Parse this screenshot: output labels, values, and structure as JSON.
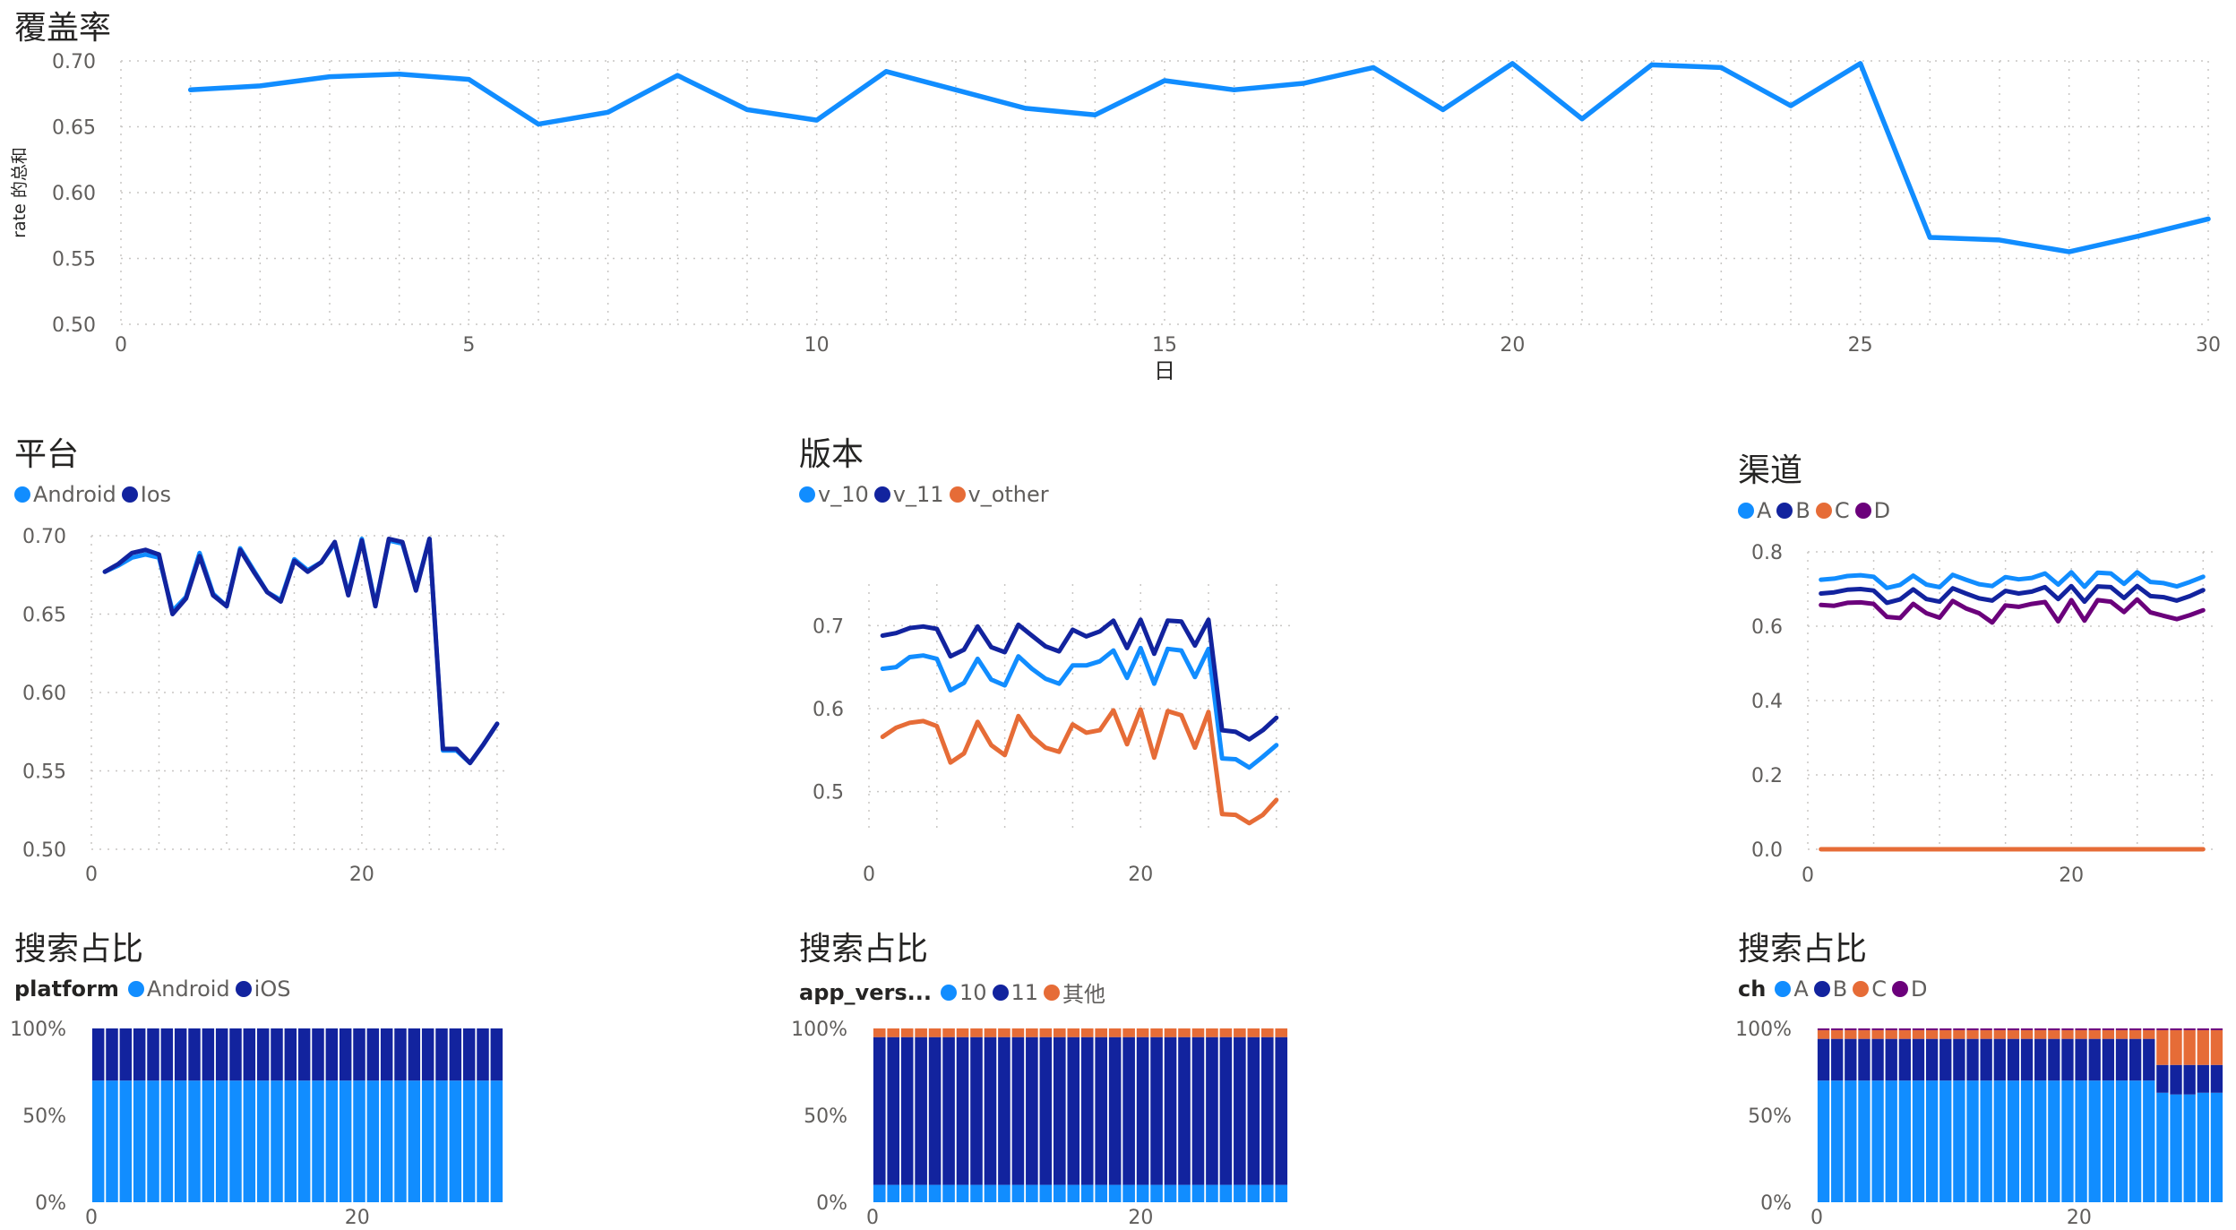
{
  "colors": {
    "light_blue": "#118DFF",
    "dark_blue": "#12239E",
    "orange": "#E66C37",
    "purple": "#6B007B",
    "grid": "#c8c6c4",
    "axis_text": "#605e5c"
  },
  "chart_data": [
    {
      "id": "coverage",
      "type": "line",
      "title": "覆盖率",
      "xlabel": "日",
      "ylabel": "rate 的总和",
      "xlim": [
        0,
        30
      ],
      "ylim": [
        0.5,
        0.7
      ],
      "xticks": [
        0,
        5,
        10,
        15,
        20,
        25,
        30
      ],
      "yticks": [
        0.5,
        0.55,
        0.6,
        0.65,
        0.7
      ],
      "ytick_labels": [
        "0.50",
        "0.55",
        "0.60",
        "0.65",
        "0.70"
      ],
      "grid": true,
      "x": [
        1,
        2,
        3,
        4,
        5,
        6,
        7,
        8,
        9,
        10,
        11,
        12,
        13,
        14,
        15,
        16,
        17,
        18,
        19,
        20,
        21,
        22,
        23,
        24,
        25,
        26,
        27,
        28,
        29,
        30
      ],
      "series": [
        {
          "color": "#118DFF",
          "values": [
            0.678,
            0.681,
            0.688,
            0.69,
            0.686,
            0.652,
            0.661,
            0.689,
            0.663,
            0.655,
            0.692,
            0.678,
            0.664,
            0.659,
            0.685,
            0.678,
            0.683,
            0.695,
            0.663,
            0.698,
            0.656,
            0.697,
            0.695,
            0.666,
            0.698,
            0.566,
            0.564,
            0.555,
            0.567,
            0.58
          ]
        }
      ]
    },
    {
      "id": "platform",
      "type": "line",
      "title": "平台",
      "xlim": [
        0,
        31
      ],
      "ylim": [
        0.5,
        0.7
      ],
      "xticks": [
        0,
        20
      ],
      "yticks": [
        0.5,
        0.55,
        0.6,
        0.65,
        0.7
      ],
      "ytick_labels": [
        "0.50",
        "0.55",
        "0.60",
        "0.65",
        "0.70"
      ],
      "grid": true,
      "legend_position": "top-left",
      "x": [
        1,
        2,
        3,
        4,
        5,
        6,
        7,
        8,
        9,
        10,
        11,
        12,
        13,
        14,
        15,
        16,
        17,
        18,
        19,
        20,
        21,
        22,
        23,
        24,
        25,
        26,
        27,
        28,
        29,
        30
      ],
      "series": [
        {
          "name": "Android",
          "color": "#118DFF",
          "values": [
            0.677,
            0.681,
            0.686,
            0.688,
            0.686,
            0.652,
            0.661,
            0.689,
            0.663,
            0.655,
            0.692,
            0.678,
            0.664,
            0.659,
            0.685,
            0.678,
            0.683,
            0.695,
            0.663,
            0.698,
            0.656,
            0.697,
            0.695,
            0.666,
            0.698,
            0.563,
            0.563,
            0.555,
            0.567,
            0.58
          ]
        },
        {
          "name": "Ios",
          "color": "#12239E",
          "values": [
            0.677,
            0.682,
            0.689,
            0.691,
            0.688,
            0.65,
            0.66,
            0.687,
            0.662,
            0.655,
            0.691,
            0.677,
            0.664,
            0.658,
            0.684,
            0.677,
            0.683,
            0.696,
            0.662,
            0.697,
            0.655,
            0.698,
            0.696,
            0.665,
            0.698,
            0.564,
            0.564,
            0.555,
            0.567,
            0.58
          ]
        }
      ]
    },
    {
      "id": "version",
      "type": "line",
      "title": "版本",
      "xlim": [
        0,
        31
      ],
      "ylim": [
        0.45,
        0.75
      ],
      "xticks": [
        0,
        20
      ],
      "yticks": [
        0.5,
        0.6,
        0.7
      ],
      "ytick_labels": [
        "0.5",
        "0.6",
        "0.7"
      ],
      "grid": true,
      "legend_position": "top-left",
      "x": [
        1,
        2,
        3,
        4,
        5,
        6,
        7,
        8,
        9,
        10,
        11,
        12,
        13,
        14,
        15,
        16,
        17,
        18,
        19,
        20,
        21,
        22,
        23,
        24,
        25,
        26,
        27,
        28,
        29,
        30
      ],
      "series": [
        {
          "name": "v_10",
          "color": "#118DFF",
          "values": [
            0.648,
            0.65,
            0.662,
            0.664,
            0.66,
            0.622,
            0.631,
            0.66,
            0.635,
            0.628,
            0.663,
            0.648,
            0.636,
            0.63,
            0.652,
            0.652,
            0.657,
            0.67,
            0.637,
            0.673,
            0.63,
            0.672,
            0.67,
            0.638,
            0.672,
            0.54,
            0.539,
            0.529,
            0.542,
            0.556
          ]
        },
        {
          "name": "v_11",
          "color": "#12239E",
          "values": [
            0.688,
            0.691,
            0.697,
            0.699,
            0.696,
            0.663,
            0.671,
            0.699,
            0.674,
            0.668,
            0.701,
            0.688,
            0.675,
            0.669,
            0.695,
            0.687,
            0.693,
            0.706,
            0.673,
            0.707,
            0.666,
            0.706,
            0.705,
            0.676,
            0.707,
            0.574,
            0.572,
            0.563,
            0.574,
            0.589
          ]
        },
        {
          "name": "v_other",
          "color": "#E66C37",
          "values": [
            0.566,
            0.577,
            0.583,
            0.585,
            0.579,
            0.535,
            0.546,
            0.584,
            0.556,
            0.544,
            0.591,
            0.567,
            0.553,
            0.548,
            0.581,
            0.571,
            0.574,
            0.598,
            0.557,
            0.599,
            0.541,
            0.597,
            0.592,
            0.553,
            0.596,
            0.473,
            0.472,
            0.462,
            0.472,
            0.49
          ]
        }
      ]
    },
    {
      "id": "channel",
      "type": "line",
      "title": "渠道",
      "xlim": [
        0,
        31
      ],
      "ylim": [
        0,
        0.8
      ],
      "xticks": [
        0,
        20
      ],
      "yticks": [
        0,
        0.2,
        0.4,
        0.6,
        0.8
      ],
      "ytick_labels": [
        "0.0",
        "0.2",
        "0.4",
        "0.6",
        "0.8"
      ],
      "grid": true,
      "legend_position": "top-left",
      "x": [
        1,
        2,
        3,
        4,
        5,
        6,
        7,
        8,
        9,
        10,
        11,
        12,
        13,
        14,
        15,
        16,
        17,
        18,
        19,
        20,
        21,
        22,
        23,
        24,
        25,
        26,
        27,
        28,
        29,
        30
      ],
      "series": [
        {
          "name": "A",
          "color": "#118DFF",
          "values": [
            0.725,
            0.728,
            0.735,
            0.737,
            0.733,
            0.703,
            0.711,
            0.736,
            0.712,
            0.705,
            0.738,
            0.725,
            0.713,
            0.708,
            0.732,
            0.726,
            0.73,
            0.742,
            0.712,
            0.745,
            0.706,
            0.744,
            0.742,
            0.714,
            0.745,
            0.719,
            0.716,
            0.707,
            0.719,
            0.733
          ]
        },
        {
          "name": "B",
          "color": "#12239E",
          "values": [
            0.688,
            0.691,
            0.698,
            0.7,
            0.696,
            0.663,
            0.672,
            0.699,
            0.673,
            0.666,
            0.702,
            0.688,
            0.675,
            0.669,
            0.695,
            0.688,
            0.693,
            0.705,
            0.673,
            0.708,
            0.666,
            0.707,
            0.705,
            0.676,
            0.708,
            0.681,
            0.678,
            0.669,
            0.681,
            0.697
          ]
        },
        {
          "name": "C",
          "color": "#E66C37",
          "values": [
            0,
            0,
            0,
            0,
            0,
            0,
            0,
            0,
            0,
            0,
            0,
            0,
            0,
            0,
            0,
            0,
            0,
            0,
            0,
            0,
            0,
            0,
            0,
            0,
            0,
            0,
            0,
            0,
            0,
            0
          ]
        },
        {
          "name": "D",
          "color": "#6B007B",
          "values": [
            0.657,
            0.655,
            0.663,
            0.664,
            0.66,
            0.625,
            0.622,
            0.66,
            0.635,
            0.623,
            0.668,
            0.648,
            0.635,
            0.61,
            0.656,
            0.652,
            0.66,
            0.665,
            0.613,
            0.67,
            0.615,
            0.67,
            0.666,
            0.638,
            0.672,
            0.637,
            0.628,
            0.619,
            0.63,
            0.643
          ]
        }
      ]
    },
    {
      "id": "search_platform",
      "type": "bar",
      "stacked": "percent",
      "title": "搜索占比",
      "legend_title": "platform",
      "xlim": [
        0,
        31
      ],
      "ylim": [
        0,
        1
      ],
      "xticks": [
        0,
        20
      ],
      "yticks": [
        0,
        0.5,
        1
      ],
      "ytick_labels": [
        "0%",
        "50%",
        "100%"
      ],
      "grid": false,
      "legend_position": "top-left",
      "x": [
        1,
        2,
        3,
        4,
        5,
        6,
        7,
        8,
        9,
        10,
        11,
        12,
        13,
        14,
        15,
        16,
        17,
        18,
        19,
        20,
        21,
        22,
        23,
        24,
        25,
        26,
        27,
        28,
        29,
        30
      ],
      "series": [
        {
          "name": "Android",
          "color": "#118DFF",
          "values": [
            0.7,
            0.7,
            0.7,
            0.7,
            0.7,
            0.7,
            0.7,
            0.7,
            0.7,
            0.7,
            0.7,
            0.7,
            0.7,
            0.7,
            0.7,
            0.7,
            0.7,
            0.7,
            0.7,
            0.7,
            0.7,
            0.7,
            0.7,
            0.7,
            0.7,
            0.7,
            0.7,
            0.7,
            0.7,
            0.7
          ]
        },
        {
          "name": "iOS",
          "color": "#12239E",
          "values": [
            0.3,
            0.3,
            0.3,
            0.3,
            0.3,
            0.3,
            0.3,
            0.3,
            0.3,
            0.3,
            0.3,
            0.3,
            0.3,
            0.3,
            0.3,
            0.3,
            0.3,
            0.3,
            0.3,
            0.3,
            0.3,
            0.3,
            0.3,
            0.3,
            0.3,
            0.3,
            0.3,
            0.3,
            0.3,
            0.3
          ]
        }
      ]
    },
    {
      "id": "search_version",
      "type": "bar",
      "stacked": "percent",
      "title": "搜索占比",
      "legend_title": "app_vers...",
      "xlim": [
        0,
        31
      ],
      "ylim": [
        0,
        1
      ],
      "xticks": [
        0,
        20
      ],
      "yticks": [
        0,
        0.5,
        1
      ],
      "ytick_labels": [
        "0%",
        "50%",
        "100%"
      ],
      "grid": false,
      "legend_position": "top-left",
      "x": [
        1,
        2,
        3,
        4,
        5,
        6,
        7,
        8,
        9,
        10,
        11,
        12,
        13,
        14,
        15,
        16,
        17,
        18,
        19,
        20,
        21,
        22,
        23,
        24,
        25,
        26,
        27,
        28,
        29,
        30
      ],
      "series": [
        {
          "name": "10",
          "color": "#118DFF",
          "values": [
            0.1,
            0.1,
            0.1,
            0.1,
            0.1,
            0.1,
            0.1,
            0.1,
            0.1,
            0.1,
            0.1,
            0.1,
            0.1,
            0.1,
            0.1,
            0.1,
            0.1,
            0.1,
            0.1,
            0.1,
            0.1,
            0.1,
            0.1,
            0.1,
            0.1,
            0.1,
            0.1,
            0.1,
            0.1,
            0.1
          ]
        },
        {
          "name": "11",
          "color": "#12239E",
          "values": [
            0.85,
            0.85,
            0.85,
            0.85,
            0.85,
            0.85,
            0.85,
            0.85,
            0.85,
            0.85,
            0.85,
            0.85,
            0.85,
            0.85,
            0.85,
            0.85,
            0.85,
            0.85,
            0.85,
            0.85,
            0.85,
            0.85,
            0.85,
            0.85,
            0.85,
            0.85,
            0.85,
            0.85,
            0.85,
            0.85
          ]
        },
        {
          "name": "其他",
          "color": "#E66C37",
          "values": [
            0.05,
            0.05,
            0.05,
            0.05,
            0.05,
            0.05,
            0.05,
            0.05,
            0.05,
            0.05,
            0.05,
            0.05,
            0.05,
            0.05,
            0.05,
            0.05,
            0.05,
            0.05,
            0.05,
            0.05,
            0.05,
            0.05,
            0.05,
            0.05,
            0.05,
            0.05,
            0.05,
            0.05,
            0.05,
            0.05
          ]
        }
      ]
    },
    {
      "id": "search_channel",
      "type": "bar",
      "stacked": "percent",
      "title": "搜索占比",
      "legend_title": "ch",
      "xlim": [
        0,
        31
      ],
      "ylim": [
        0,
        1
      ],
      "xticks": [
        0,
        20
      ],
      "yticks": [
        0,
        0.5,
        1
      ],
      "ytick_labels": [
        "0%",
        "50%",
        "100%"
      ],
      "grid": false,
      "legend_position": "top-left",
      "x": [
        1,
        2,
        3,
        4,
        5,
        6,
        7,
        8,
        9,
        10,
        11,
        12,
        13,
        14,
        15,
        16,
        17,
        18,
        19,
        20,
        21,
        22,
        23,
        24,
        25,
        26,
        27,
        28,
        29,
        30
      ],
      "series": [
        {
          "name": "A",
          "color": "#118DFF",
          "values": [
            0.7,
            0.7,
            0.7,
            0.7,
            0.7,
            0.7,
            0.7,
            0.7,
            0.7,
            0.7,
            0.7,
            0.7,
            0.7,
            0.7,
            0.7,
            0.7,
            0.7,
            0.7,
            0.7,
            0.7,
            0.7,
            0.7,
            0.7,
            0.7,
            0.7,
            0.63,
            0.62,
            0.62,
            0.63,
            0.63
          ]
        },
        {
          "name": "B",
          "color": "#12239E",
          "values": [
            0.24,
            0.24,
            0.24,
            0.24,
            0.24,
            0.24,
            0.24,
            0.24,
            0.24,
            0.24,
            0.24,
            0.24,
            0.24,
            0.24,
            0.24,
            0.24,
            0.24,
            0.24,
            0.24,
            0.24,
            0.24,
            0.24,
            0.24,
            0.24,
            0.24,
            0.16,
            0.17,
            0.17,
            0.16,
            0.16
          ]
        },
        {
          "name": "C",
          "color": "#E66C37",
          "values": [
            0.05,
            0.05,
            0.05,
            0.05,
            0.05,
            0.05,
            0.05,
            0.05,
            0.05,
            0.05,
            0.05,
            0.05,
            0.05,
            0.05,
            0.05,
            0.05,
            0.05,
            0.05,
            0.05,
            0.05,
            0.05,
            0.05,
            0.05,
            0.05,
            0.05,
            0.2,
            0.2,
            0.2,
            0.2,
            0.2
          ]
        },
        {
          "name": "D",
          "color": "#6B007B",
          "values": [
            0.01,
            0.01,
            0.01,
            0.01,
            0.01,
            0.01,
            0.01,
            0.01,
            0.01,
            0.01,
            0.01,
            0.01,
            0.01,
            0.01,
            0.01,
            0.01,
            0.01,
            0.01,
            0.01,
            0.01,
            0.01,
            0.01,
            0.01,
            0.01,
            0.01,
            0.01,
            0.01,
            0.01,
            0.01,
            0.01
          ]
        }
      ]
    }
  ]
}
